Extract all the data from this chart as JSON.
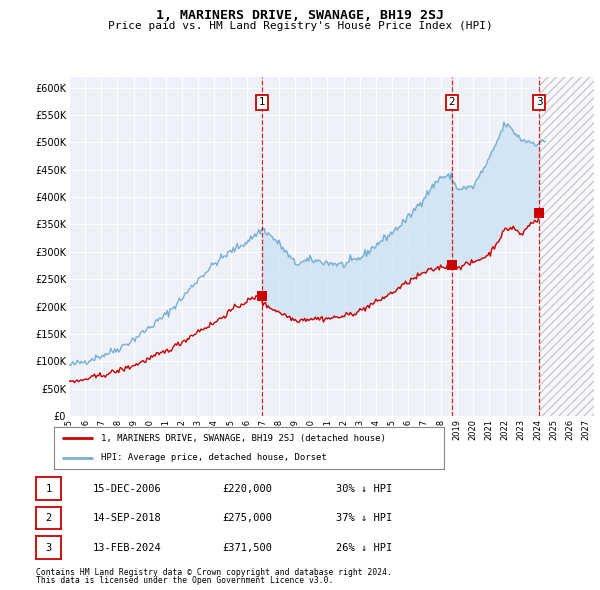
{
  "title": "1, MARINERS DRIVE, SWANAGE, BH19 2SJ",
  "subtitle": "Price paid vs. HM Land Registry's House Price Index (HPI)",
  "xlim_start": 1995.0,
  "xlim_end": 2027.5,
  "ylim_min": 0,
  "ylim_max": 620000,
  "yticks": [
    0,
    50000,
    100000,
    150000,
    200000,
    250000,
    300000,
    350000,
    400000,
    450000,
    500000,
    550000,
    600000
  ],
  "ytick_labels": [
    "£0",
    "£50K",
    "£100K",
    "£150K",
    "£200K",
    "£250K",
    "£300K",
    "£350K",
    "£400K",
    "£450K",
    "£500K",
    "£550K",
    "£600K"
  ],
  "xticks": [
    1995,
    1996,
    1997,
    1998,
    1999,
    2000,
    2001,
    2002,
    2003,
    2004,
    2005,
    2006,
    2007,
    2008,
    2009,
    2010,
    2011,
    2012,
    2013,
    2014,
    2015,
    2016,
    2017,
    2018,
    2019,
    2020,
    2021,
    2022,
    2023,
    2024,
    2025,
    2026,
    2027
  ],
  "sale1_x": 2006.96,
  "sale1_y": 220000,
  "sale1_label": "1",
  "sale1_date": "15-DEC-2006",
  "sale1_price": "£220,000",
  "sale1_hpi": "30% ↓ HPI",
  "sale2_x": 2018.71,
  "sale2_y": 275000,
  "sale2_label": "2",
  "sale2_date": "14-SEP-2018",
  "sale2_price": "£275,000",
  "sale2_hpi": "37% ↓ HPI",
  "sale3_x": 2024.12,
  "sale3_y": 371500,
  "sale3_label": "3",
  "sale3_date": "13-FEB-2024",
  "sale3_price": "£371,500",
  "sale3_hpi": "26% ↓ HPI",
  "hpi_color": "#7aafd4",
  "hpi_fill_color": "#c8dff0",
  "sale_color": "#cc0000",
  "legend_line1": "1, MARINERS DRIVE, SWANAGE, BH19 2SJ (detached house)",
  "legend_line2": "HPI: Average price, detached house, Dorset",
  "footnote1": "Contains HM Land Registry data © Crown copyright and database right 2024.",
  "footnote2": "This data is licensed under the Open Government Licence v3.0.",
  "future_shade_start": 2024.12,
  "bg_color": "#eef2f8"
}
